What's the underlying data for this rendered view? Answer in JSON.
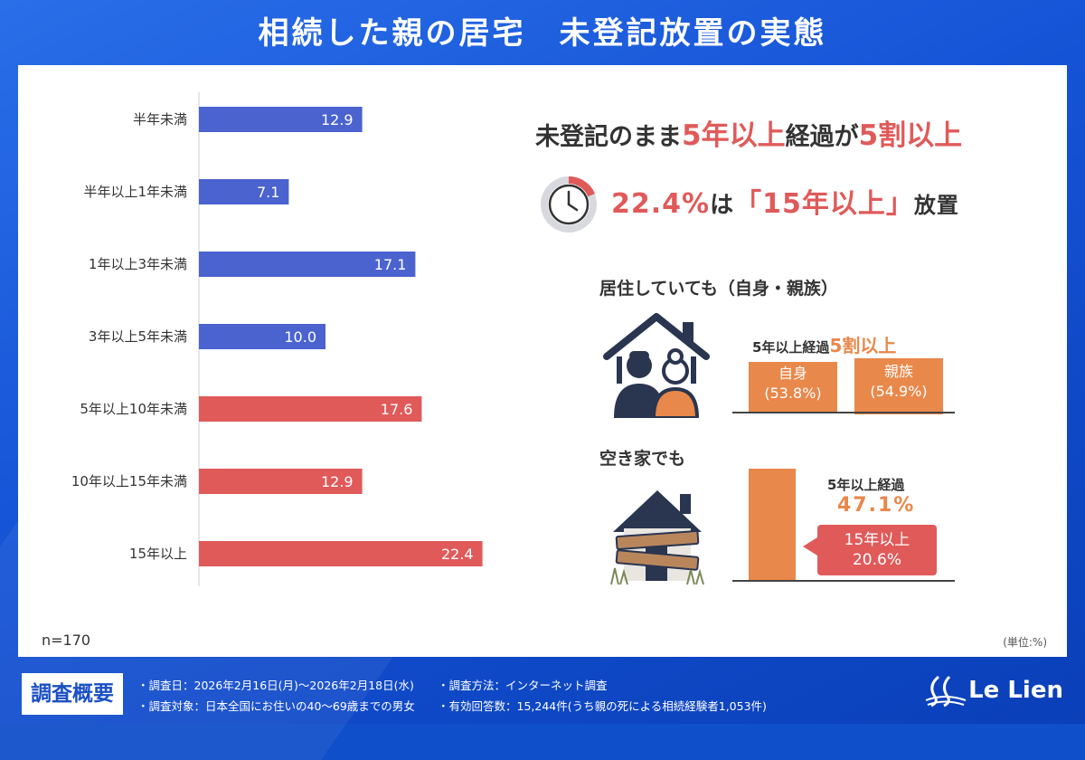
{
  "title": "相続した親の居宅　未登記放置の実態",
  "chart_data": {
    "type": "bar",
    "orientation": "horizontal",
    "categories": [
      "半年未満",
      "半年以上1年未満",
      "1年以上3年未満",
      "3年以上5年未満",
      "5年以上10年未満",
      "10年以上15年未満",
      "15年以上"
    ],
    "values": [
      12.9,
      7.1,
      17.1,
      10.0,
      17.6,
      12.9,
      22.4
    ],
    "value_labels": [
      "12.9",
      "7.1",
      "17.1",
      "10.0",
      "17.6",
      "12.9",
      "22.4"
    ],
    "bar_colors": [
      "#4a63cf",
      "#4a63cf",
      "#4a63cf",
      "#4a63cf",
      "#e05a5a",
      "#e05a5a",
      "#e05a5a"
    ],
    "unit": "(単位:%)",
    "n": "n=170",
    "xlim": [
      0,
      30
    ]
  },
  "headline": {
    "line1_a": "未登記のまま",
    "line1_b": "5年以上",
    "line1_c": "経過が",
    "line1_d": "5割以上",
    "line2_a": "22.4%",
    "line2_b": "は",
    "line2_c": "「15年以上」",
    "line2_d": "放置"
  },
  "residing": {
    "title": "居住していても（自身・親族）",
    "label_a": "5年以上経過",
    "label_b": "5割以上",
    "box1_name": "自身",
    "box1_value": "(53.8%)",
    "box2_name": "親族",
    "box2_value": "(54.9%)"
  },
  "vacant": {
    "title": "空き家でも",
    "label": "5年以上経過",
    "value": "47.1%",
    "callout_name": "15年以上",
    "callout_value": "20.6%"
  },
  "footer": {
    "tag": "調査概要",
    "date": "・調査日：2026年2月16日(月)～2026年2月18日(水)",
    "target": "・調査対象：日本全国にお住いの40～69歳までの男女",
    "method": "・調査方法：インターネット調査",
    "responses": "・有効回答数：15,244件(うち親の死による相続経験者1,053件)",
    "brand": "Le Lien"
  },
  "colors": {
    "blue_bar": "#4a63cf",
    "red_bar": "#e05a5a",
    "orange": "#e8884a",
    "navy": "#2a3550"
  },
  "icons": [
    "clock-icon",
    "house-couple-icon",
    "boarded-house-icon",
    "brand-logo-icon"
  ]
}
